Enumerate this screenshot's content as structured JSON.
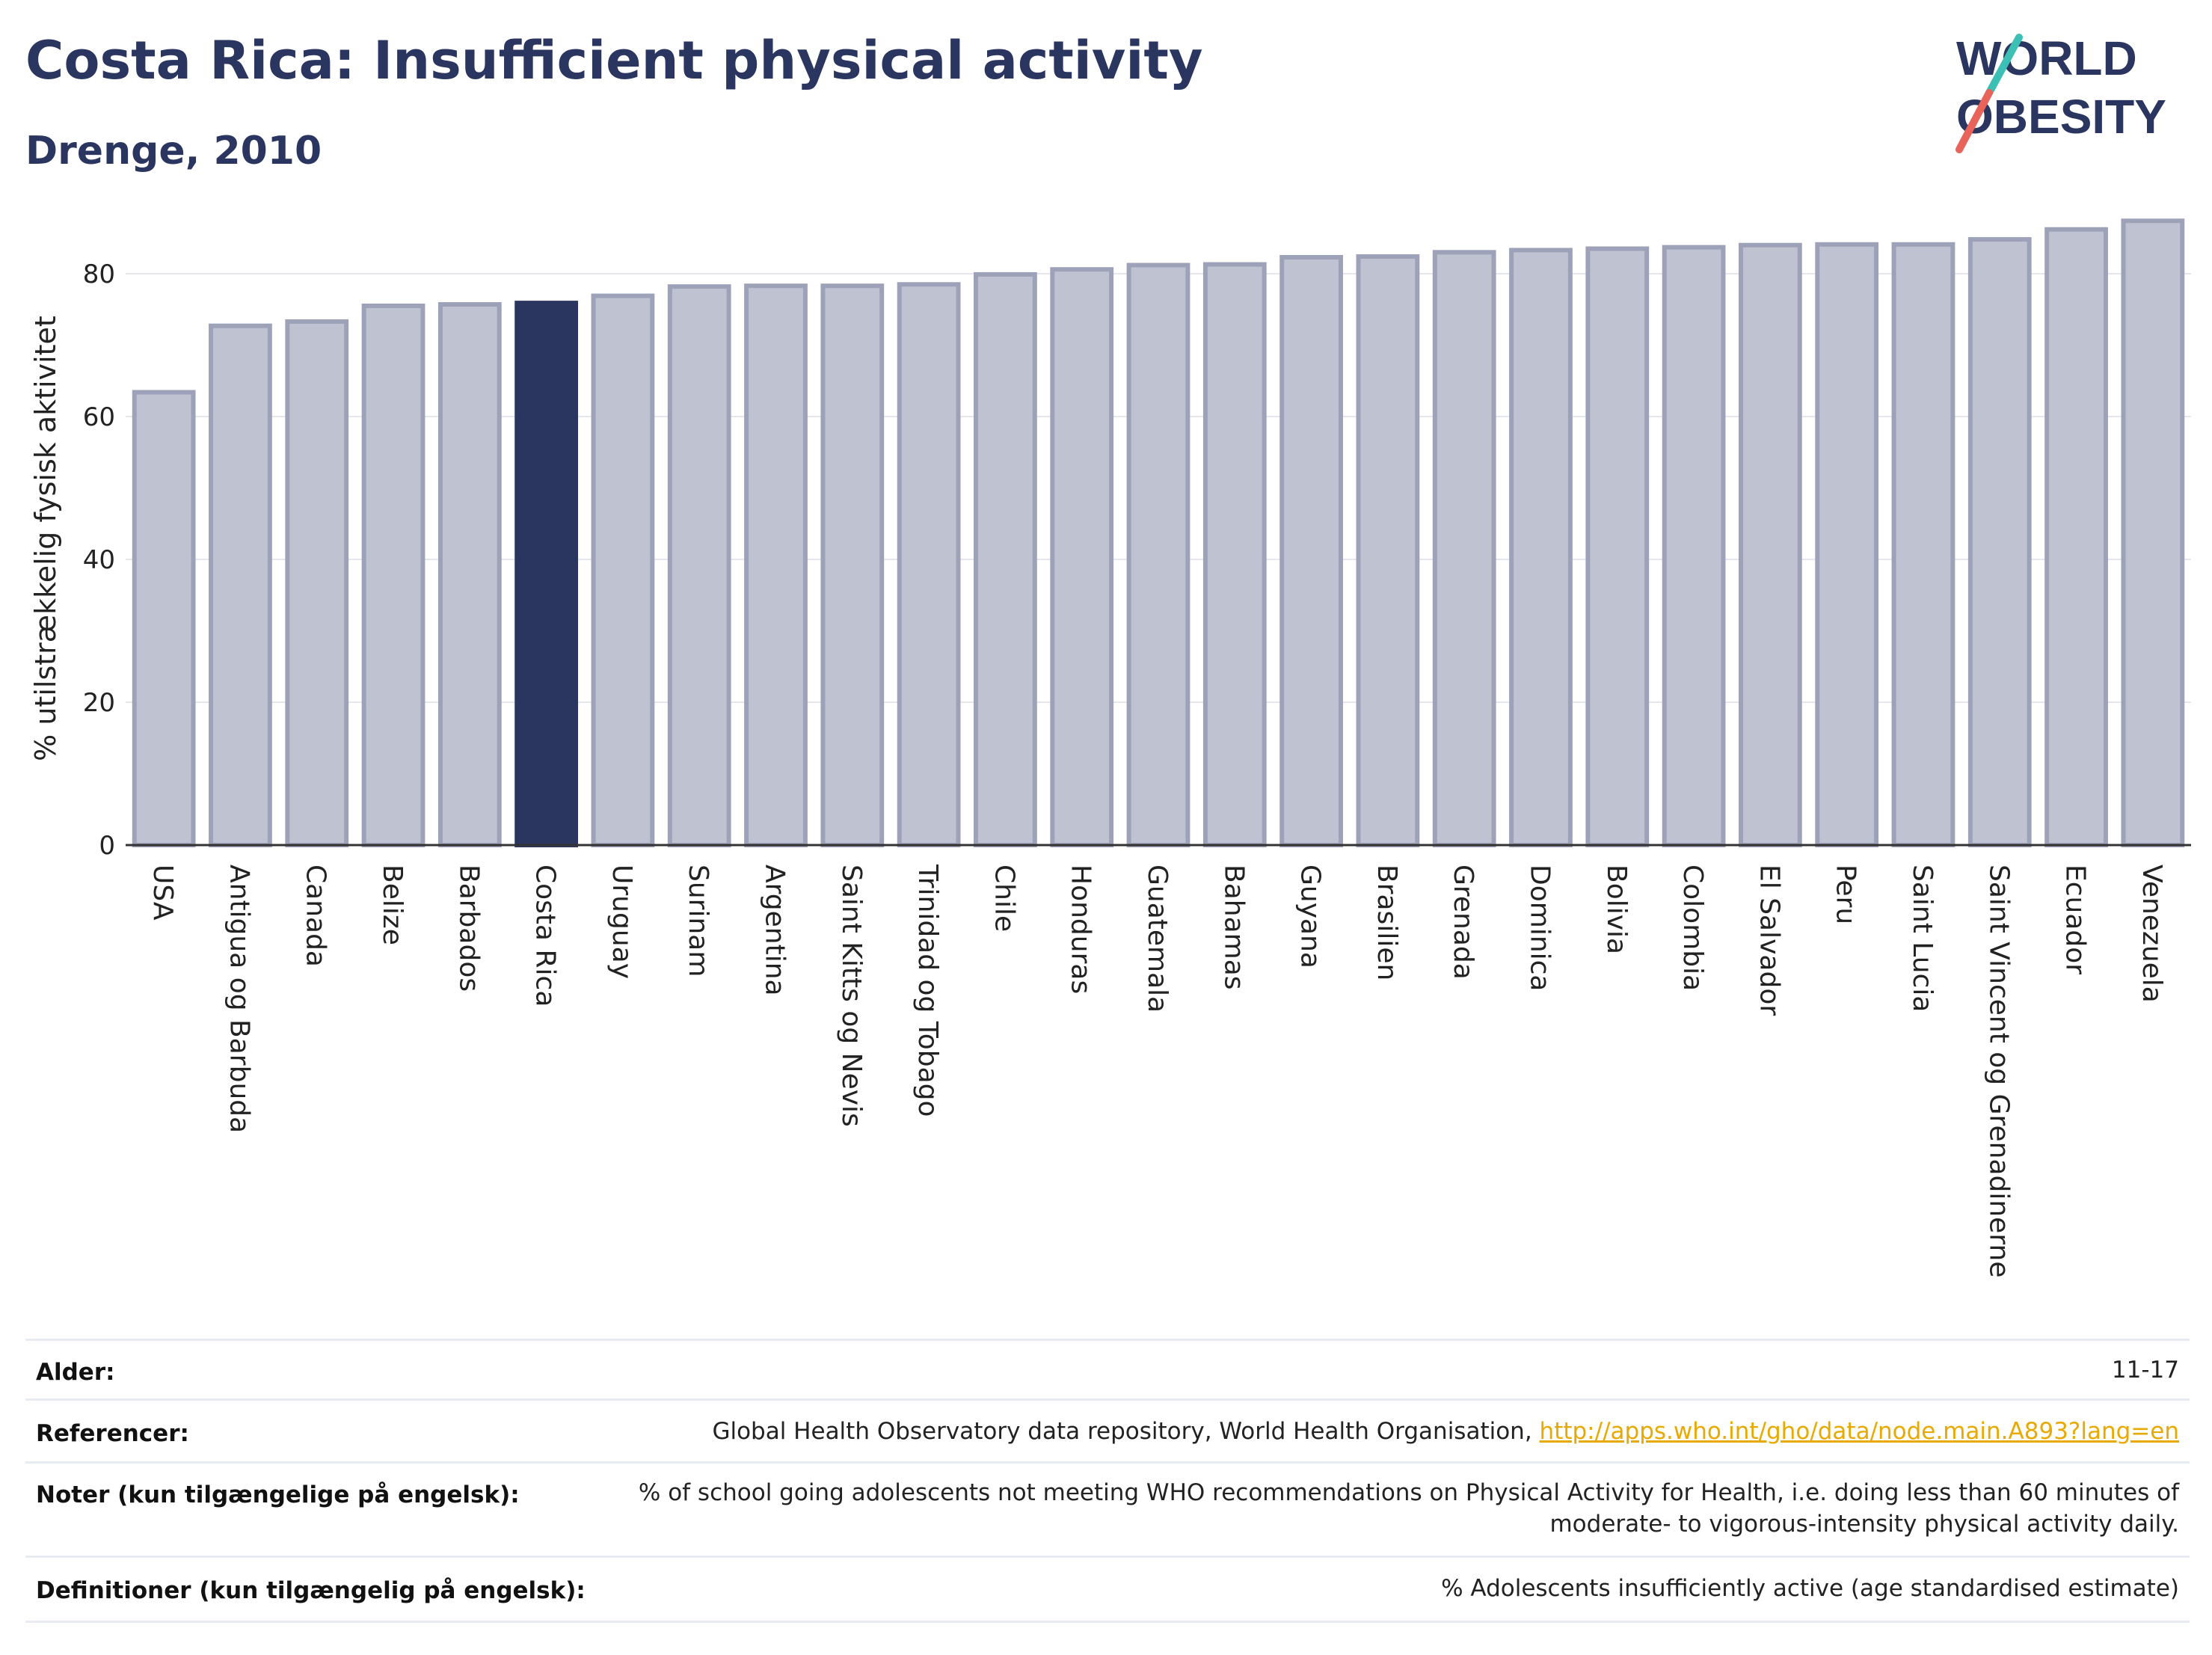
{
  "header": {
    "title": "Costa Rica: Insufficient physical activity",
    "subtitle": "Drenge, 2010"
  },
  "logo": {
    "line1": "WORLD",
    "line2": "OBESITY"
  },
  "colors": {
    "bar": "#bfc3d1",
    "bar_border": "#9da2b9",
    "highlight": "#2a3560",
    "title": "#2a3560",
    "link": "#e8a900"
  },
  "chart_data": {
    "type": "bar",
    "title": "Costa Rica: Insufficient physical activity",
    "subtitle": "Drenge, 2010",
    "ylabel": "% utilstrækkelig fysisk aktivitet",
    "xlabel": "",
    "ylim": [
      0,
      89
    ],
    "yticks": [
      0,
      20,
      40,
      60,
      80
    ],
    "grid": true,
    "highlight": "Costa Rica",
    "categories": [
      "USA",
      "Antigua og Barbuda",
      "Canada",
      "Belize",
      "Barbados",
      "Costa Rica",
      "Uruguay",
      "Surinam",
      "Argentina",
      "Saint Kitts og Nevis",
      "Trinidad og Tobago",
      "Chile",
      "Honduras",
      "Guatemala",
      "Bahamas",
      "Guyana",
      "Brasilien",
      "Grenada",
      "Dominica",
      "Bolivia",
      "Colombia",
      "El Salvador",
      "Peru",
      "Saint Lucia",
      "Saint Vincent og Grenadinerne",
      "Ecuador",
      "Venezuela"
    ],
    "values": [
      63.4,
      72.7,
      73.3,
      75.5,
      75.7,
      75.9,
      76.9,
      78.2,
      78.3,
      78.3,
      78.5,
      79.9,
      80.6,
      81.2,
      81.3,
      82.3,
      82.4,
      83.0,
      83.3,
      83.5,
      83.7,
      84.0,
      84.1,
      84.1,
      84.8,
      86.2,
      87.4
    ]
  },
  "meta": {
    "age_label": "Alder:",
    "age_value": "11-17",
    "ref_label": "Referencer:",
    "ref_text": "Global Health Observatory data repository, World Health Organisation, ",
    "ref_link": "http://apps.who.int/gho/data/node.main.A893?lang=en",
    "notes_label": "Noter (kun tilgængelige på engelsk):",
    "notes_text": "% of school going adolescents not meeting WHO recommendations on Physical Activity for Health, i.e. doing less than 60 minutes of moderate- to vigorous-intensity physical activity daily.",
    "def_label": "Definitioner (kun tilgængelig på engelsk):",
    "def_text": "% Adolescents insufficiently active (age standardised estimate)"
  }
}
